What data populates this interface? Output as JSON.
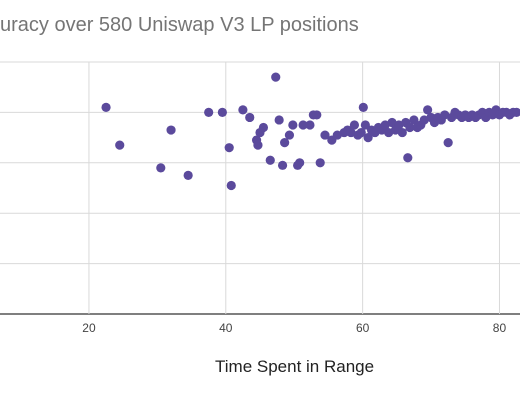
{
  "chart_data": {
    "type": "scatter",
    "title": "uracy over 580 Uniswap V3 LP positions",
    "xlabel": "Time Spent in Range",
    "ylabel": "",
    "xlim": [
      7,
      83
    ],
    "ylim": [
      0,
      1
    ],
    "x_ticks": [
      20,
      40,
      60,
      80
    ],
    "grid": true,
    "legend": "none",
    "marker_color": "#5b4a9c",
    "series": [
      {
        "points": [
          [
            22.5,
            0.82
          ],
          [
            24.5,
            0.67
          ],
          [
            30.5,
            0.58
          ],
          [
            32,
            0.73
          ],
          [
            34.5,
            0.55
          ],
          [
            37.5,
            0.8
          ],
          [
            39.5,
            0.8
          ],
          [
            40.5,
            0.66
          ],
          [
            40.8,
            0.51
          ],
          [
            42.5,
            0.81
          ],
          [
            43.5,
            0.78
          ],
          [
            44.5,
            0.69
          ],
          [
            44.7,
            0.67
          ],
          [
            45,
            0.72
          ],
          [
            45.5,
            0.74
          ],
          [
            46.5,
            0.61
          ],
          [
            47.3,
            0.94
          ],
          [
            47.8,
            0.77
          ],
          [
            48.3,
            0.59
          ],
          [
            48.6,
            0.68
          ],
          [
            49.3,
            0.71
          ],
          [
            49.8,
            0.75
          ],
          [
            50.5,
            0.59
          ],
          [
            50.8,
            0.6
          ],
          [
            51.3,
            0.75
          ],
          [
            52.3,
            0.75
          ],
          [
            52.8,
            0.79
          ],
          [
            53.3,
            0.79
          ],
          [
            53.8,
            0.6
          ],
          [
            54.5,
            0.71
          ],
          [
            55.5,
            0.69
          ],
          [
            56.3,
            0.71
          ],
          [
            57.3,
            0.72
          ],
          [
            57.8,
            0.73
          ],
          [
            58.3,
            0.72
          ],
          [
            58.8,
            0.75
          ],
          [
            59.3,
            0.71
          ],
          [
            59.8,
            0.72
          ],
          [
            60.1,
            0.82
          ],
          [
            60.4,
            0.75
          ],
          [
            60.8,
            0.7
          ],
          [
            61.3,
            0.73
          ],
          [
            61.8,
            0.72
          ],
          [
            62.3,
            0.74
          ],
          [
            62.8,
            0.73
          ],
          [
            63.3,
            0.75
          ],
          [
            63.8,
            0.72
          ],
          [
            64.3,
            0.76
          ],
          [
            64.8,
            0.73
          ],
          [
            65.3,
            0.75
          ],
          [
            65.8,
            0.72
          ],
          [
            66.3,
            0.76
          ],
          [
            66.6,
            0.62
          ],
          [
            66.9,
            0.74
          ],
          [
            67.5,
            0.77
          ],
          [
            68,
            0.74
          ],
          [
            68.5,
            0.75
          ],
          [
            69,
            0.77
          ],
          [
            69.5,
            0.81
          ],
          [
            70,
            0.78
          ],
          [
            70.5,
            0.76
          ],
          [
            71,
            0.78
          ],
          [
            71.5,
            0.77
          ],
          [
            72,
            0.79
          ],
          [
            72.5,
            0.68
          ],
          [
            73,
            0.78
          ],
          [
            73.5,
            0.8
          ],
          [
            74,
            0.79
          ],
          [
            74.5,
            0.78
          ],
          [
            75,
            0.79
          ],
          [
            75.5,
            0.78
          ],
          [
            76,
            0.79
          ],
          [
            76.5,
            0.78
          ],
          [
            77,
            0.79
          ],
          [
            77.5,
            0.8
          ],
          [
            78,
            0.78
          ],
          [
            78.5,
            0.8
          ],
          [
            79,
            0.79
          ],
          [
            79.5,
            0.81
          ],
          [
            80,
            0.79
          ],
          [
            80.5,
            0.8
          ],
          [
            81,
            0.8
          ],
          [
            81.5,
            0.79
          ],
          [
            82,
            0.8
          ],
          [
            82.5,
            0.8
          ]
        ]
      }
    ]
  }
}
